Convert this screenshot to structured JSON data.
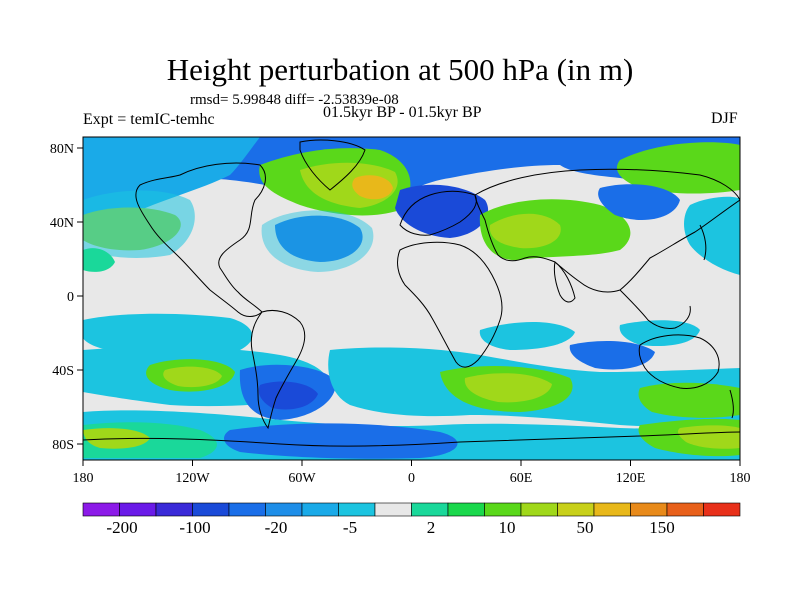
{
  "title": "Height perturbation at 500 hPa (in m)",
  "stats": "rmsd= 5.99848 diff= -2.53839e-08",
  "experiment": "Expt = temIC-temhc",
  "period": "01.5kyr BP - 01.5kyr BP",
  "season": "DJF",
  "axes": {
    "x_ticks": [
      "180",
      "120W",
      "60W",
      "0",
      "60E",
      "120E",
      "180"
    ],
    "y_ticks": [
      "80N",
      "40N",
      "0",
      "40S",
      "80S"
    ]
  },
  "colorbar": {
    "labels": [
      "-200",
      "-100",
      "-20",
      "-5",
      "2",
      "10",
      "50",
      "150"
    ],
    "colors": [
      "#8c1ae8",
      "#6a1ae8",
      "#3a2ad8",
      "#1a4ad8",
      "#1a6ee8",
      "#1e8ee8",
      "#1aaae8",
      "#1cc4e0",
      "#e8e8e8",
      "#1ad89a",
      "#1ad84c",
      "#5ad81a",
      "#a0d81a",
      "#c8d01a",
      "#e8b81a",
      "#e88a1a",
      "#e8601a",
      "#e8301a"
    ]
  }
}
